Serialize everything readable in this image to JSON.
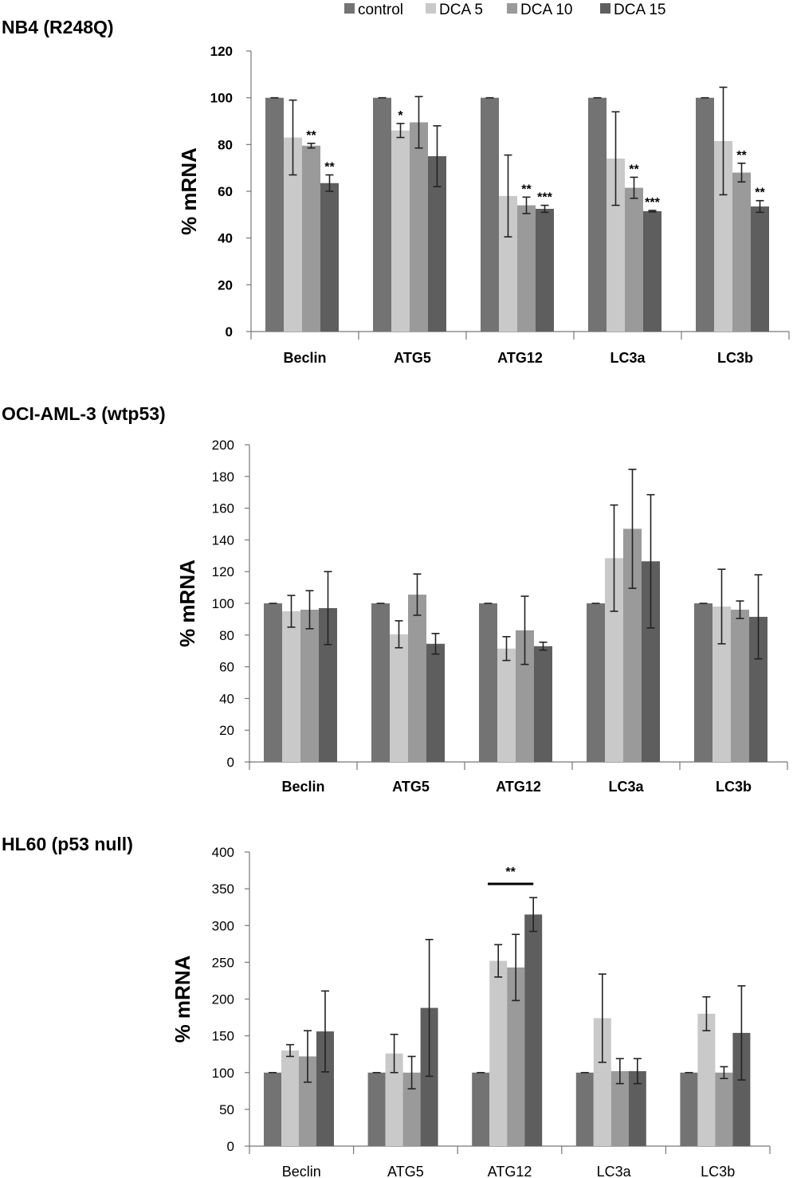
{
  "legend": [
    {
      "name": "control",
      "color": "#737373"
    },
    {
      "name": "DCA 5",
      "color": "#c9c9c9"
    },
    {
      "name": "DCA 10",
      "color": "#9a9a9a"
    },
    {
      "name": "DCA 15",
      "color": "#5e5e5e"
    }
  ],
  "chart_data": [
    {
      "type": "bar",
      "title": "NB4 (R248Q)",
      "ylabel": "% mRNA",
      "ylim": [
        0,
        120
      ],
      "yticks": [
        0,
        20,
        40,
        60,
        80,
        100,
        120
      ],
      "categories": [
        "Beclin",
        "ATG5",
        "ATG12",
        "LC3a",
        "LC3b"
      ],
      "series": [
        {
          "name": "control",
          "values": [
            100,
            100,
            100,
            100,
            100
          ],
          "errors": [
            0,
            0,
            0,
            0,
            0
          ]
        },
        {
          "name": "DCA 5",
          "values": [
            83,
            86,
            58,
            74,
            81.5
          ],
          "errors": [
            16,
            3,
            17.5,
            20,
            23
          ]
        },
        {
          "name": "DCA 10",
          "values": [
            79.5,
            89.5,
            54,
            61.5,
            68
          ],
          "errors": [
            1,
            11,
            3.5,
            4.5,
            4
          ]
        },
        {
          "name": "DCA 15",
          "values": [
            63.5,
            75,
            52.5,
            51.5,
            53.5
          ],
          "errors": [
            3.5,
            13,
            1.5,
            0.3,
            2.5
          ]
        }
      ],
      "significance": [
        [
          "",
          "",
          "**",
          "**"
        ],
        [
          "",
          "*",
          "",
          ""
        ],
        [
          "",
          "",
          "**",
          "***"
        ],
        [
          "",
          "",
          "**",
          "***"
        ],
        [
          "",
          "",
          "**",
          "**"
        ]
      ]
    },
    {
      "type": "bar",
      "title": "OCI-AML-3 (wtp53)",
      "ylabel": "% mRNA",
      "ylim": [
        0,
        200
      ],
      "yticks": [
        0,
        20,
        40,
        60,
        80,
        100,
        120,
        140,
        160,
        180,
        200
      ],
      "categories": [
        "Beclin",
        "ATG5",
        "ATG12",
        "LC3a",
        "LC3b"
      ],
      "series": [
        {
          "name": "control",
          "values": [
            100,
            100,
            100,
            100,
            100
          ],
          "errors": [
            0,
            0,
            0,
            0,
            0
          ]
        },
        {
          "name": "DCA 5",
          "values": [
            95,
            80.5,
            71.5,
            128.5,
            98
          ],
          "errors": [
            10,
            8.5,
            7.5,
            33.5,
            23.5
          ]
        },
        {
          "name": "DCA 10",
          "values": [
            96,
            105.5,
            83,
            147,
            96
          ],
          "errors": [
            12,
            13,
            21.5,
            37.5,
            5.5
          ]
        },
        {
          "name": "DCA 15",
          "values": [
            97,
            74.5,
            73,
            126.5,
            91.5
          ],
          "errors": [
            23,
            6.5,
            2.5,
            42,
            26.5
          ]
        }
      ],
      "significance": [
        [
          "",
          "",
          "",
          ""
        ],
        [
          "",
          "",
          "",
          ""
        ],
        [
          "",
          "",
          "",
          ""
        ],
        [
          "",
          "",
          "",
          ""
        ],
        [
          "",
          "",
          "",
          ""
        ]
      ]
    },
    {
      "type": "bar",
      "title": "HL60 (p53 null)",
      "ylabel": "% mRNA",
      "ylim": [
        0,
        400
      ],
      "yticks": [
        0,
        50,
        100,
        150,
        200,
        250,
        300,
        350,
        400
      ],
      "categories": [
        "Beclin",
        "ATG5",
        "ATG12",
        "LC3a",
        "LC3b"
      ],
      "series": [
        {
          "name": "control",
          "values": [
            100,
            100,
            100,
            100,
            100
          ],
          "errors": [
            0,
            0,
            0,
            0,
            0
          ]
        },
        {
          "name": "DCA 5",
          "values": [
            130,
            126,
            252,
            174,
            180
          ],
          "errors": [
            8,
            26,
            22,
            60,
            23
          ]
        },
        {
          "name": "DCA 10",
          "values": [
            122,
            100,
            243,
            102,
            100
          ],
          "errors": [
            35,
            22,
            45,
            17,
            8
          ]
        },
        {
          "name": "DCA 15",
          "values": [
            156,
            188,
            315,
            102,
            154
          ],
          "errors": [
            55,
            93,
            23,
            17,
            64
          ]
        }
      ],
      "significance": [
        [
          "",
          "",
          "",
          ""
        ],
        [
          "",
          "",
          "",
          ""
        ],
        [
          "",
          "",
          "",
          ""
        ],
        [
          "",
          "",
          "",
          ""
        ],
        [
          "",
          "",
          "",
          ""
        ]
      ],
      "bracket": {
        "category": "ATG12",
        "label": "**"
      }
    }
  ]
}
